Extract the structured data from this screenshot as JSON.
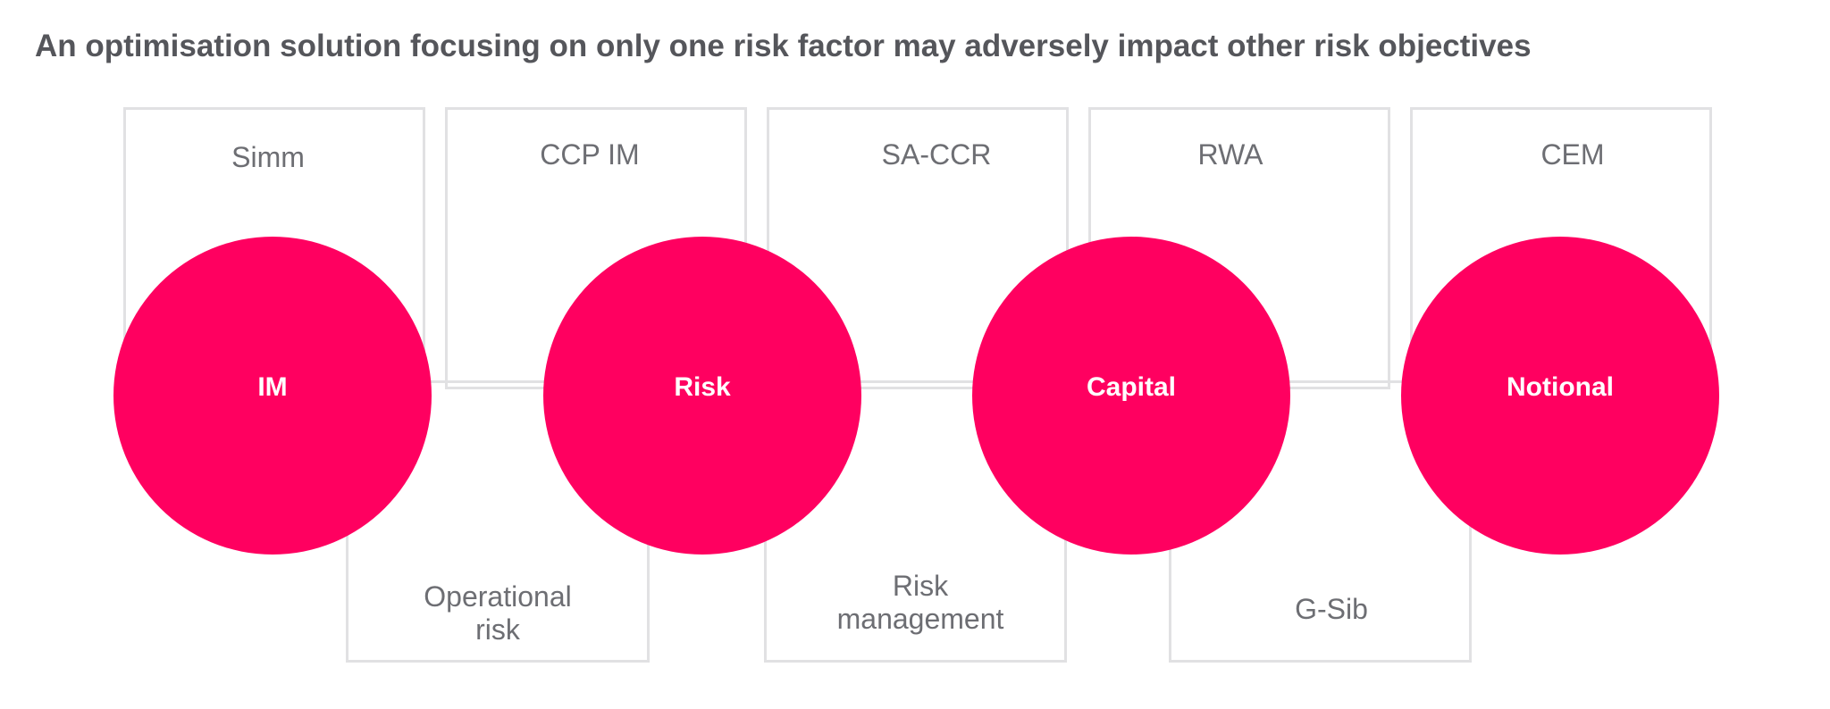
{
  "title": "An optimisation solution focusing on only one risk factor may adversely impact other risk objectives",
  "top_labels": [
    "Simm",
    "CCP IM",
    "SA-CCR",
    "RWA",
    "CEM"
  ],
  "bottom_labels": [
    "Operational\nrisk",
    "Risk\nmanagement",
    "G-Sib"
  ],
  "circles": [
    "IM",
    "Risk",
    "Capital",
    "Notional"
  ],
  "colors": {
    "circle": "#ff0060",
    "box_border": "#e1e1e3",
    "title": "#55565b",
    "label": "#6d6e73"
  }
}
